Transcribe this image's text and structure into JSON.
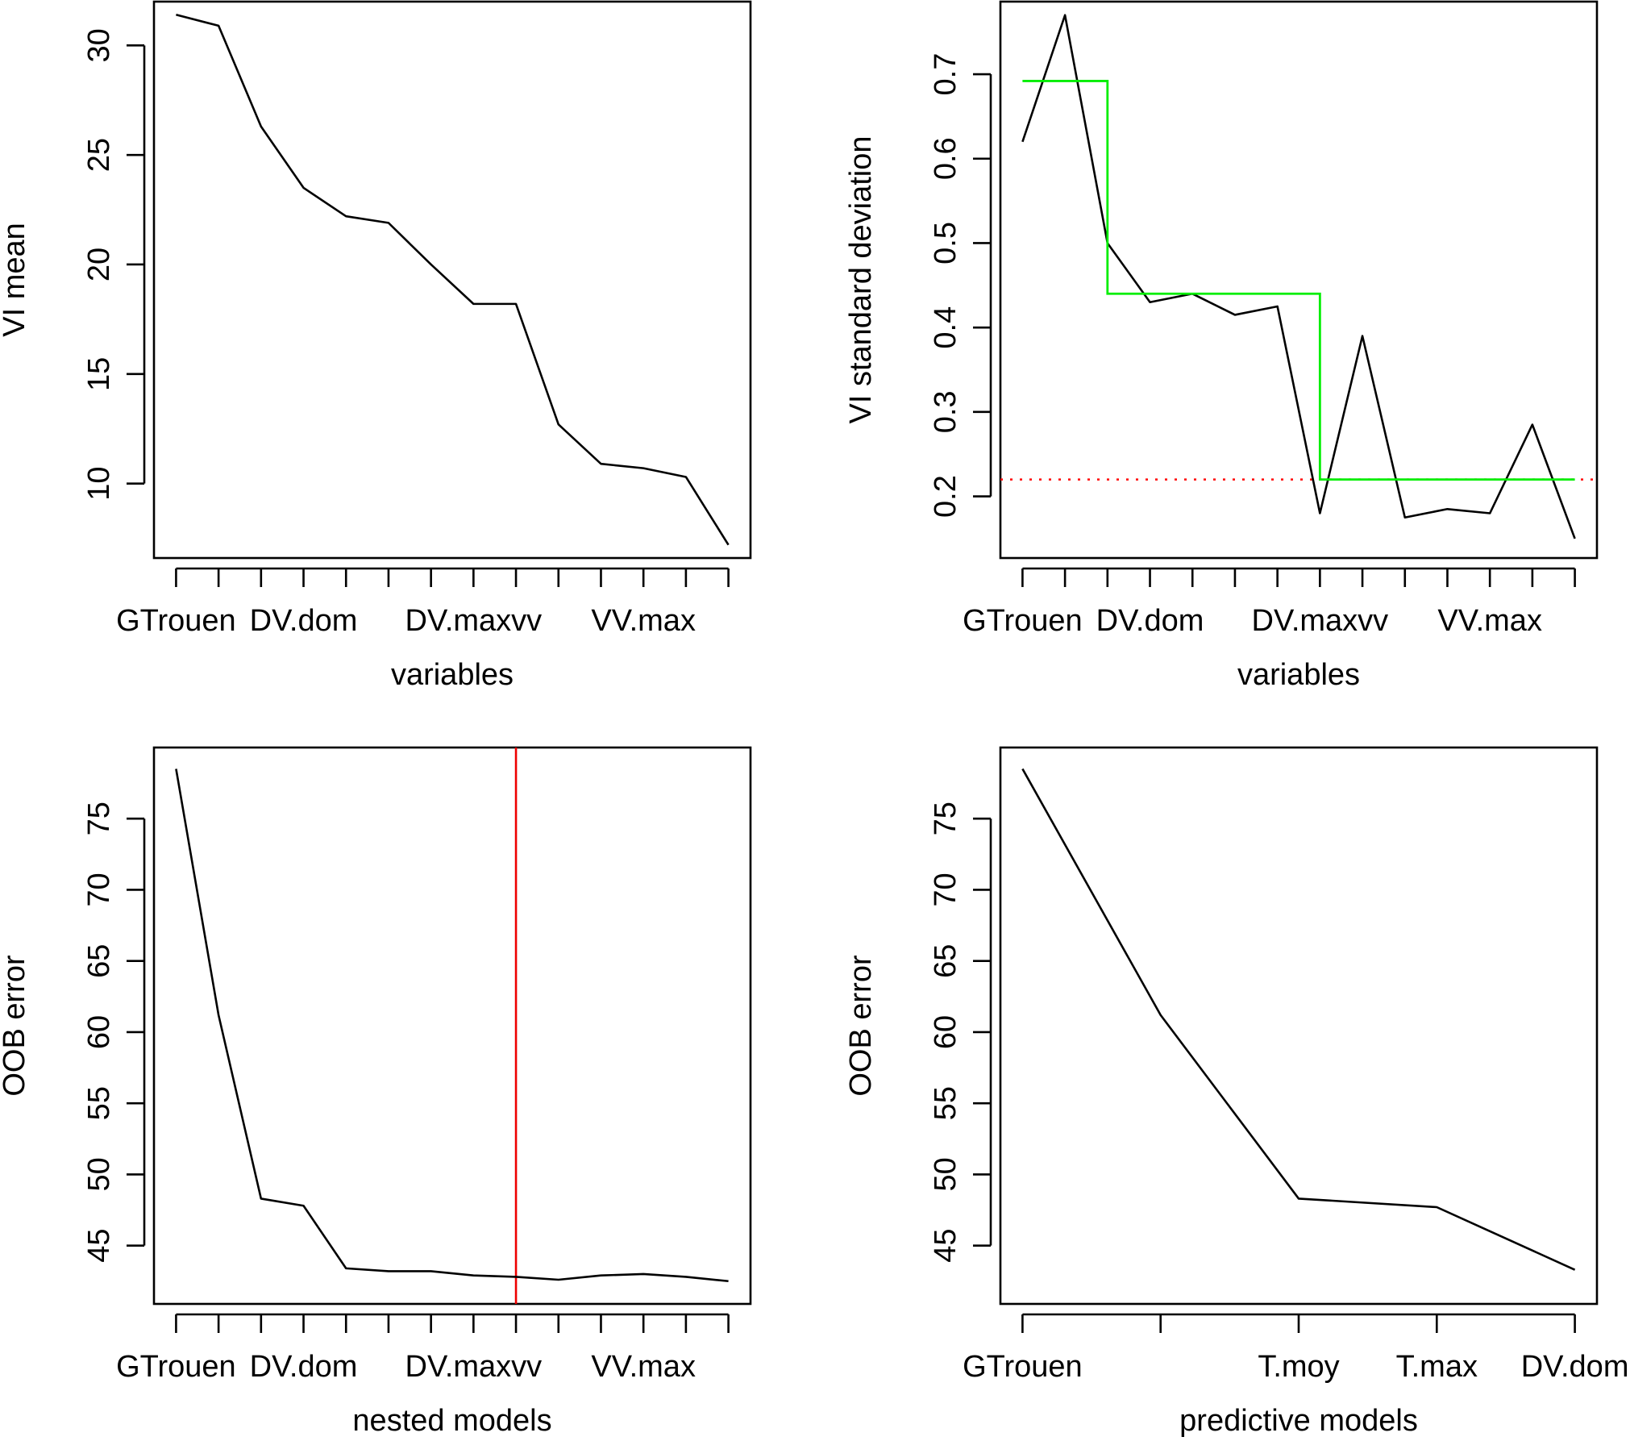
{
  "colors": {
    "line": "#000000",
    "threshold_line": "#00ee00",
    "threshold_hline": "#ff0000",
    "vline": "#ee0000"
  },
  "chart_data": [
    {
      "type": "line",
      "id": "vi-mean",
      "xlabel": "variables",
      "ylabel": "VI mean",
      "x": [
        1,
        2,
        3,
        4,
        5,
        6,
        7,
        8,
        9,
        10,
        11,
        12,
        13,
        14
      ],
      "x_tick_positions": [
        1,
        4,
        7,
        10,
        13
      ],
      "x_tick_labels": [
        "GTrouen",
        "DV.dom",
        "DV.maxvv",
        "VV.max"
      ],
      "x_tick_label_positions": [
        1,
        4,
        8,
        12
      ],
      "xlim": [
        0.48,
        14.52
      ],
      "ylim": [
        6.6,
        32.0
      ],
      "y_ticks": [
        10,
        15,
        20,
        25,
        30
      ],
      "series": [
        {
          "values": [
            31.4,
            30.9,
            26.3,
            23.5,
            22.2,
            21.9,
            20.0,
            18.2,
            18.2,
            12.7,
            10.9,
            10.7,
            10.3,
            7.2
          ],
          "color": "#000000"
        }
      ]
    },
    {
      "type": "line",
      "id": "vi-sd",
      "xlabel": "variables",
      "ylabel": "VI standard deviation",
      "x": [
        1,
        2,
        3,
        4,
        5,
        6,
        7,
        8,
        9,
        10,
        11,
        12,
        13,
        14
      ],
      "x_tick_labels": [
        "GTrouen",
        "DV.dom",
        "DV.maxvv",
        "VV.max"
      ],
      "x_tick_label_positions": [
        1,
        4,
        8,
        12
      ],
      "xlim": [
        0.48,
        14.52
      ],
      "ylim": [
        0.127,
        0.786
      ],
      "y_ticks": [
        0.2,
        0.3,
        0.4,
        0.5,
        0.6,
        0.7
      ],
      "series": [
        {
          "values": [
            0.62,
            0.77,
            0.5,
            0.43,
            0.44,
            0.415,
            0.425,
            0.18,
            0.39,
            0.175,
            0.185,
            0.18,
            0.285,
            0.15
          ],
          "color": "#000000"
        }
      ],
      "step_threshold": {
        "points": [
          [
            1,
            0.692
          ],
          [
            3,
            0.692
          ],
          [
            3,
            0.44
          ],
          [
            8,
            0.44
          ],
          [
            8,
            0.22
          ],
          [
            14,
            0.22
          ]
        ],
        "color": "#00ee00"
      },
      "hline": {
        "y": 0.22,
        "style": "dotted",
        "color": "#ff0000"
      }
    },
    {
      "type": "line",
      "id": "nested-oob",
      "xlabel": "nested models",
      "ylabel": "OOB error",
      "x": [
        1,
        2,
        3,
        4,
        5,
        6,
        7,
        8,
        9,
        10,
        11,
        12,
        13,
        14
      ],
      "x_tick_labels": [
        "GTrouen",
        "DV.dom",
        "DV.maxvv",
        "VV.max"
      ],
      "x_tick_label_positions": [
        1,
        4,
        8,
        12
      ],
      "xlim": [
        0.48,
        14.52
      ],
      "ylim": [
        40.9,
        80.0
      ],
      "y_ticks": [
        45,
        50,
        55,
        60,
        65,
        70,
        75
      ],
      "series": [
        {
          "values": [
            78.5,
            61.2,
            48.3,
            47.8,
            43.4,
            43.2,
            43.2,
            42.9,
            42.8,
            42.6,
            42.9,
            43.0,
            42.8,
            42.5
          ],
          "color": "#000000"
        }
      ],
      "vline": {
        "x": 9,
        "color": "#ee0000"
      }
    },
    {
      "type": "line",
      "id": "predictive-oob",
      "xlabel": "predictive models",
      "ylabel": "OOB error",
      "x": [
        1,
        2,
        3,
        4,
        5
      ],
      "x_tick_labels": [
        "GTrouen",
        "",
        "T.moy",
        "T.max",
        "DV.dom"
      ],
      "x_tick_label_positions": [
        1,
        2,
        3,
        4,
        5
      ],
      "xlim": [
        0.84,
        5.16
      ],
      "ylim": [
        40.9,
        80.0
      ],
      "y_ticks": [
        45,
        50,
        55,
        60,
        65,
        70,
        75
      ],
      "series": [
        {
          "values": [
            78.5,
            61.2,
            48.3,
            47.7,
            43.3
          ],
          "color": "#000000"
        }
      ]
    }
  ]
}
